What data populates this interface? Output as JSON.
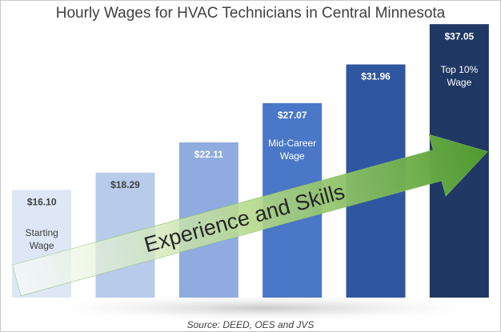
{
  "chart_data": {
    "type": "bar",
    "title": "Hourly Wages for HVAC Technicians in Central Minnesota",
    "values": [
      16.1,
      18.29,
      22.11,
      27.07,
      31.96,
      37.05
    ],
    "value_labels": [
      "$16.10",
      "$18.29",
      "$22.11",
      "$27.07",
      "$31.96",
      "$37.05"
    ],
    "colors": [
      "#dde7f5",
      "#b9cbeb",
      "#8fabdf",
      "#4a77c7",
      "#2f579f",
      "#1f3864"
    ],
    "label_colors": [
      "#404040",
      "#404040",
      "#ffffff",
      "#ffffff",
      "#ffffff",
      "#ffffff"
    ],
    "ylim": [
      2.5,
      40
    ],
    "annotations": [
      "Starting Wage",
      "Mid-Career Wage",
      "Top 10% Wage"
    ],
    "arrow_text": "Experience and Skills",
    "source": "Source: DEED, OES and JVS"
  }
}
